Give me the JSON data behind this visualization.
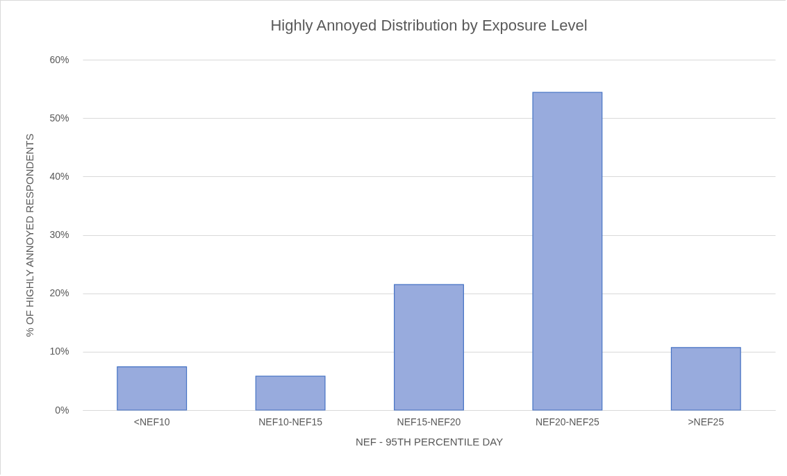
{
  "chart_data": {
    "type": "bar",
    "title": "Highly Annoyed Distribution by Exposure Level",
    "xlabel": "NEF - 95TH PERCENTILE DAY",
    "ylabel": "% OF HIGHLY ANNOYED RESPONDENTS",
    "categories": [
      "<NEF10",
      "NEF10-NEF15",
      "NEF15-NEF20",
      "NEF20-NEF25",
      ">NEF25"
    ],
    "values": [
      7.4,
      5.8,
      21.5,
      54.4,
      10.7
    ],
    "color": "#98abdd",
    "ylim": [
      0,
      60
    ],
    "yticks": [
      {
        "value": 0,
        "label": "0%"
      },
      {
        "value": 10,
        "label": "10%"
      },
      {
        "value": 20,
        "label": "20%"
      },
      {
        "value": 30,
        "label": "30%"
      },
      {
        "value": 40,
        "label": "40%"
      },
      {
        "value": 50,
        "label": "50%"
      },
      {
        "value": 60,
        "label": "60%"
      }
    ],
    "grid": "y"
  }
}
